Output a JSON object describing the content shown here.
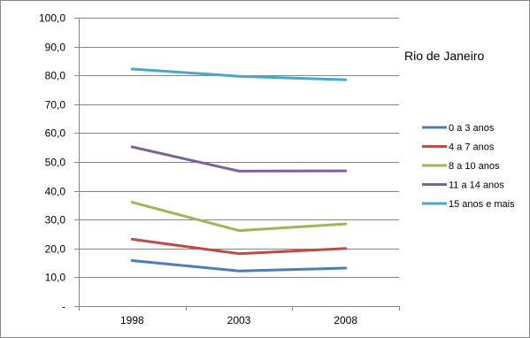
{
  "chart_data": {
    "type": "line",
    "title": "",
    "annotation": "Rio de Janeiro",
    "xlabel": "",
    "ylabel": "",
    "categories": [
      "1998",
      "2003",
      "2008"
    ],
    "ylim": [
      0,
      100
    ],
    "yticks": [
      0,
      10,
      20,
      30,
      40,
      50,
      60,
      70,
      80,
      90,
      100
    ],
    "ytick_labels": [
      "-",
      "10,0",
      "20,0",
      "30,0",
      "40,0",
      "50,0",
      "60,0",
      "70,0",
      "80,0",
      "90,0",
      "100,0"
    ],
    "grid": true,
    "legend_position": "right",
    "series": [
      {
        "name": "0 a 3 anos",
        "color": "#4A7EBB",
        "values": [
          15.8,
          12.2,
          13.2
        ]
      },
      {
        "name": "4 a 7 anos",
        "color": "#BE4B48",
        "values": [
          23.2,
          18.2,
          20.0
        ]
      },
      {
        "name": "8 a 10 anos",
        "color": "#98B954",
        "values": [
          36.0,
          26.2,
          28.5
        ]
      },
      {
        "name": "11 a 14 anos",
        "color": "#7D60A0",
        "values": [
          55.2,
          46.8,
          46.9
        ]
      },
      {
        "name": "15 anos e mais",
        "color": "#46AAC5",
        "values": [
          82.2,
          79.7,
          78.5
        ]
      }
    ]
  }
}
